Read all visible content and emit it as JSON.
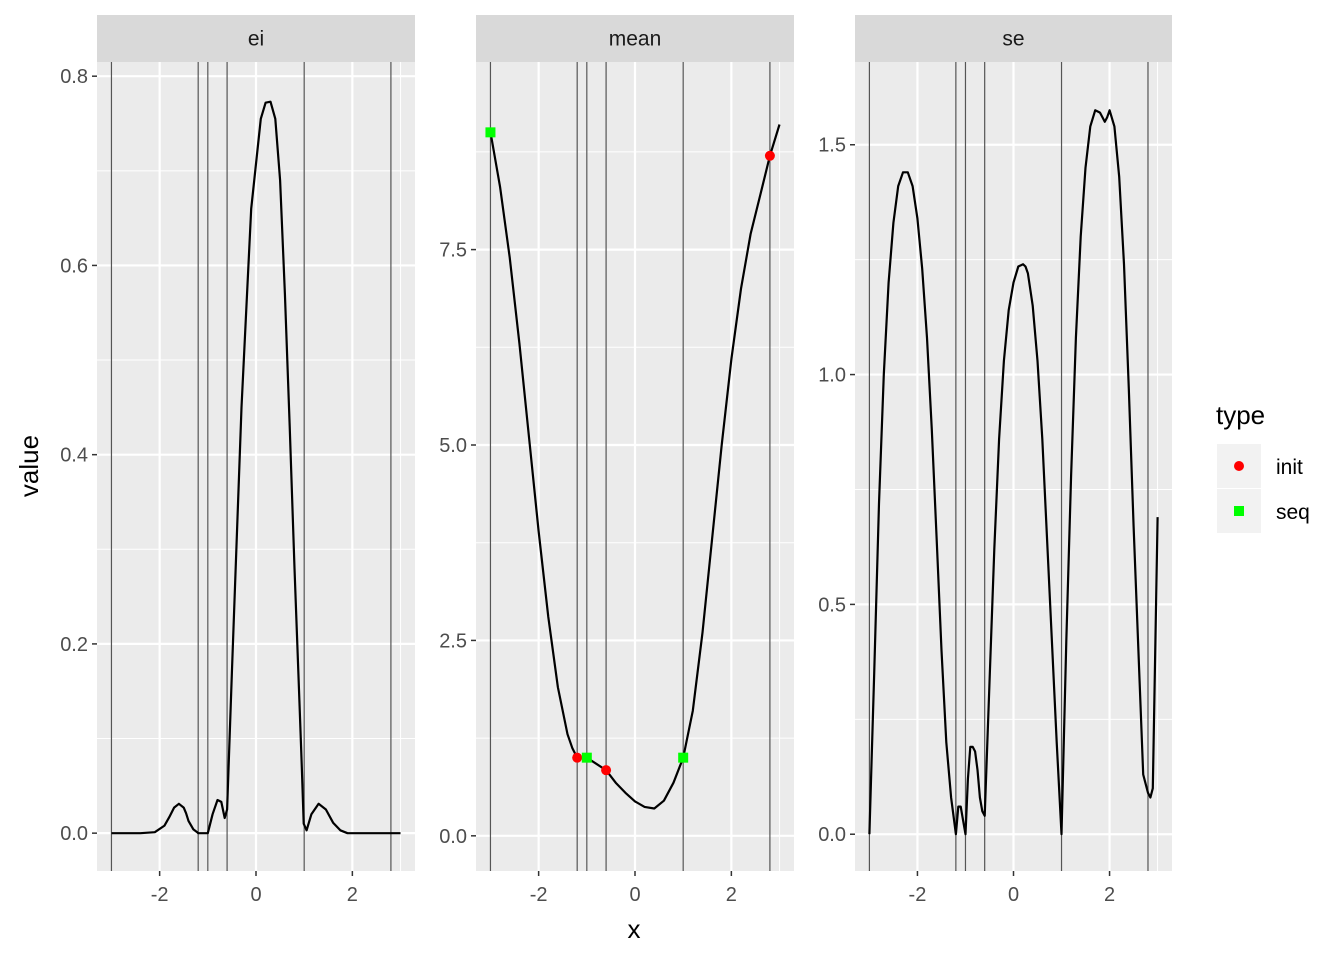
{
  "chart_data": {
    "type": "line",
    "xlabel": "x",
    "ylabel": "value",
    "xlim": [
      -3.3,
      3.3
    ],
    "x_ticks": [
      -2,
      0,
      2
    ],
    "vlines_x": [
      -3.0,
      -1.2,
      -1.0,
      -0.6,
      1.0,
      2.8
    ],
    "legend": {
      "title": "type",
      "position": "right",
      "entries": [
        {
          "name": "init",
          "shape": "circle",
          "color": "#ff0000"
        },
        {
          "name": "seq",
          "shape": "square",
          "color": "#00ff00"
        }
      ]
    },
    "colors": {
      "panel_bg": "#ebebeb",
      "strip_bg": "#d9d9d9",
      "grid": "#ffffff",
      "line": "#000000",
      "vline": "#555555"
    },
    "panels": [
      {
        "strip": "ei",
        "ylim": [
          -0.04,
          0.815
        ],
        "y_ticks": [
          0.0,
          0.2,
          0.4,
          0.6,
          0.8
        ],
        "y_tick_labels": [
          "0.0",
          "0.2",
          "0.4",
          "0.6",
          "0.8"
        ],
        "x": [
          -3.0,
          -2.4,
          -2.1,
          -1.9,
          -1.8,
          -1.7,
          -1.6,
          -1.5,
          -1.45,
          -1.4,
          -1.3,
          -1.22,
          -1.2,
          -1.1,
          -1.0,
          -0.9,
          -0.8,
          -0.72,
          -0.65,
          -0.6,
          -0.5,
          -0.3,
          -0.1,
          0.1,
          0.2,
          0.3,
          0.4,
          0.5,
          0.6,
          0.7,
          0.8,
          0.9,
          0.95,
          0.99,
          1.05,
          1.15,
          1.3,
          1.45,
          1.6,
          1.75,
          1.9,
          2.05,
          2.2,
          3.0
        ],
        "values": [
          0.0,
          0.0,
          0.001,
          0.008,
          0.017,
          0.027,
          0.031,
          0.027,
          0.021,
          0.013,
          0.004,
          0.001,
          0.0,
          0.0,
          0.0,
          0.02,
          0.035,
          0.033,
          0.016,
          0.025,
          0.17,
          0.45,
          0.66,
          0.755,
          0.772,
          0.773,
          0.755,
          0.69,
          0.57,
          0.43,
          0.28,
          0.14,
          0.07,
          0.01,
          0.003,
          0.02,
          0.031,
          0.025,
          0.011,
          0.003,
          0.0,
          0.0,
          0.0,
          0.0
        ],
        "points": []
      },
      {
        "strip": "mean",
        "ylim": [
          -0.45,
          9.9
        ],
        "y_ticks": [
          0.0,
          2.5,
          5.0,
          7.5
        ],
        "y_tick_labels": [
          "0.0",
          "2.5",
          "5.0",
          "7.5"
        ],
        "x": [
          -3.0,
          -2.8,
          -2.6,
          -2.4,
          -2.2,
          -2.0,
          -1.8,
          -1.6,
          -1.4,
          -1.3,
          -1.2,
          -1.1,
          -1.0,
          -0.8,
          -0.6,
          -0.4,
          -0.2,
          0.0,
          0.2,
          0.4,
          0.6,
          0.8,
          1.0,
          1.2,
          1.4,
          1.6,
          1.8,
          2.0,
          2.2,
          2.4,
          2.6,
          2.8,
          3.0
        ],
        "values": [
          9.0,
          8.3,
          7.4,
          6.3,
          5.1,
          3.9,
          2.8,
          1.9,
          1.3,
          1.12,
          1.0,
          1.0,
          1.0,
          0.92,
          0.84,
          0.68,
          0.55,
          0.44,
          0.37,
          0.35,
          0.45,
          0.68,
          1.0,
          1.6,
          2.6,
          3.8,
          5.0,
          6.1,
          7.0,
          7.7,
          8.2,
          8.7,
          9.1
        ],
        "points": [
          {
            "type": "seq",
            "x": -3.0,
            "y": 9.0
          },
          {
            "type": "init",
            "x": 2.8,
            "y": 8.7
          },
          {
            "type": "init",
            "x": -1.2,
            "y": 1.0
          },
          {
            "type": "seq",
            "x": -1.0,
            "y": 1.0
          },
          {
            "type": "init",
            "x": -0.6,
            "y": 0.84
          },
          {
            "type": "seq",
            "x": 1.0,
            "y": 1.0
          }
        ]
      },
      {
        "strip": "se",
        "ylim": [
          -0.08,
          1.68
        ],
        "y_ticks": [
          0.0,
          0.5,
          1.0,
          1.5
        ],
        "y_tick_labels": [
          "0.0",
          "0.5",
          "1.0",
          "1.5"
        ],
        "x": [
          -3.0,
          -2.9,
          -2.8,
          -2.7,
          -2.6,
          -2.5,
          -2.4,
          -2.3,
          -2.2,
          -2.1,
          -2.0,
          -1.9,
          -1.8,
          -1.7,
          -1.6,
          -1.5,
          -1.4,
          -1.3,
          -1.2,
          -1.15,
          -1.1,
          -1.05,
          -1.0,
          -0.95,
          -0.9,
          -0.85,
          -0.8,
          -0.75,
          -0.7,
          -0.65,
          -0.6,
          -0.5,
          -0.4,
          -0.3,
          -0.2,
          -0.1,
          0.0,
          0.1,
          0.2,
          0.25,
          0.3,
          0.4,
          0.5,
          0.6,
          0.7,
          0.8,
          0.9,
          1.0,
          1.1,
          1.2,
          1.3,
          1.4,
          1.5,
          1.6,
          1.7,
          1.8,
          1.9,
          1.95,
          2.0,
          2.1,
          2.2,
          2.3,
          2.4,
          2.5,
          2.6,
          2.7,
          2.8,
          2.85,
          2.9,
          3.0
        ],
        "values": [
          0.0,
          0.35,
          0.72,
          1.0,
          1.2,
          1.33,
          1.41,
          1.44,
          1.44,
          1.41,
          1.34,
          1.23,
          1.08,
          0.88,
          0.64,
          0.4,
          0.2,
          0.08,
          0.0,
          0.06,
          0.06,
          0.03,
          0.0,
          0.12,
          0.19,
          0.19,
          0.18,
          0.14,
          0.08,
          0.05,
          0.04,
          0.33,
          0.62,
          0.86,
          1.03,
          1.14,
          1.2,
          1.235,
          1.24,
          1.235,
          1.22,
          1.15,
          1.03,
          0.86,
          0.64,
          0.42,
          0.2,
          0.0,
          0.42,
          0.78,
          1.08,
          1.3,
          1.45,
          1.54,
          1.575,
          1.57,
          1.55,
          1.56,
          1.575,
          1.54,
          1.43,
          1.24,
          0.97,
          0.67,
          0.4,
          0.13,
          0.09,
          0.08,
          0.1,
          0.69
        ],
        "points": []
      }
    ]
  }
}
